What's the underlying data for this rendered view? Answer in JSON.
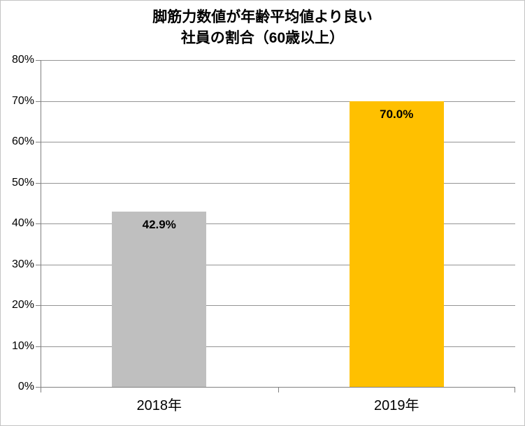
{
  "chart_data": {
    "type": "bar",
    "title_lines": [
      "脚筋力数値が年齢平均値より良い",
      "社員の割合（60歳以上）"
    ],
    "categories": [
      "2018年",
      "2019年"
    ],
    "values": [
      42.9,
      70.0
    ],
    "data_labels": [
      "42.9%",
      "70.0%"
    ],
    "bar_colors": [
      "#BFBFBF",
      "#FFC000"
    ],
    "xlabel": "",
    "ylabel": "",
    "ylim": [
      0,
      80
    ],
    "ytick_step": 10,
    "ytick_labels": [
      "0%",
      "10%",
      "20%",
      "30%",
      "40%",
      "50%",
      "60%",
      "70%",
      "80%"
    ],
    "grid": true,
    "legend": "none"
  },
  "colors": {
    "gridline": "#949494",
    "axis": "#808080",
    "background": "#FFFFFF",
    "border": "#C3C3C3",
    "text": "#000000"
  }
}
